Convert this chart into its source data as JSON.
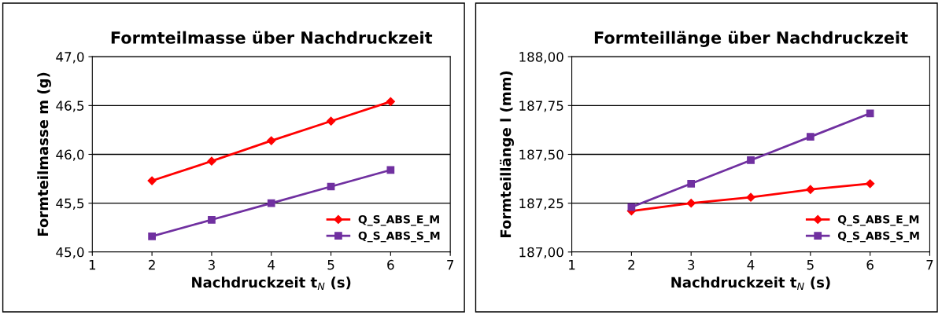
{
  "chart_data": [
    {
      "type": "line",
      "title": "Formteilmasse über Nachdruckzeit",
      "xlabel": "Nachdruckzeit t$_{N}$ (s)",
      "ylabel": "Formteilmasse m (g)",
      "x": [
        2,
        3,
        4,
        5,
        6
      ],
      "series": [
        {
          "name": "Q_S_ABS_E_M",
          "color": "#ff0000",
          "marker": "diamond",
          "values": [
            45.73,
            45.93,
            46.14,
            46.34,
            46.54
          ]
        },
        {
          "name": "Q_S_ABS_S_M",
          "color": "#7030a0",
          "marker": "square",
          "values": [
            45.16,
            45.33,
            45.5,
            45.67,
            45.84
          ]
        }
      ],
      "xlim": [
        1,
        7
      ],
      "xticks": [
        1,
        2,
        3,
        4,
        5,
        6,
        7
      ],
      "ylim": [
        45.0,
        47.0
      ],
      "yticks": [
        {
          "value": 45.0,
          "label": "45,0"
        },
        {
          "value": 45.5,
          "label": "45,5"
        },
        {
          "value": 46.0,
          "label": "46,0"
        },
        {
          "value": 46.5,
          "label": "46,5"
        },
        {
          "value": 47.0,
          "label": "47,0"
        }
      ],
      "grid": "y",
      "legend": "bottom right",
      "line_style": "solid"
    },
    {
      "type": "line",
      "title": "Formteillänge über Nachdruckzeit",
      "xlabel": "Nachdruckzeit t$_{N}$ (s)",
      "ylabel": "Formteillänge l (mm)",
      "x": [
        2,
        3,
        4,
        5,
        6
      ],
      "series": [
        {
          "name": "Q_S_ABS_E_M",
          "color": "#ff0000",
          "marker": "diamond",
          "values": [
            187.21,
            187.25,
            187.28,
            187.32,
            187.35
          ]
        },
        {
          "name": "Q_S_ABS_S_M",
          "color": "#7030a0",
          "marker": "square",
          "values": [
            187.23,
            187.35,
            187.47,
            187.59,
            187.71
          ]
        }
      ],
      "xlim": [
        1,
        7
      ],
      "xticks": [
        1,
        2,
        3,
        4,
        5,
        6,
        7
      ],
      "ylim": [
        187.0,
        188.0
      ],
      "yticks": [
        {
          "value": 187.0,
          "label": "187,00"
        },
        {
          "value": 187.25,
          "label": "187,25"
        },
        {
          "value": 187.5,
          "label": "187,50"
        },
        {
          "value": 187.75,
          "label": "187,75"
        },
        {
          "value": 188.0,
          "label": "188,00"
        }
      ],
      "grid": "y",
      "legend": "bottom right",
      "line_style": "solid"
    }
  ]
}
